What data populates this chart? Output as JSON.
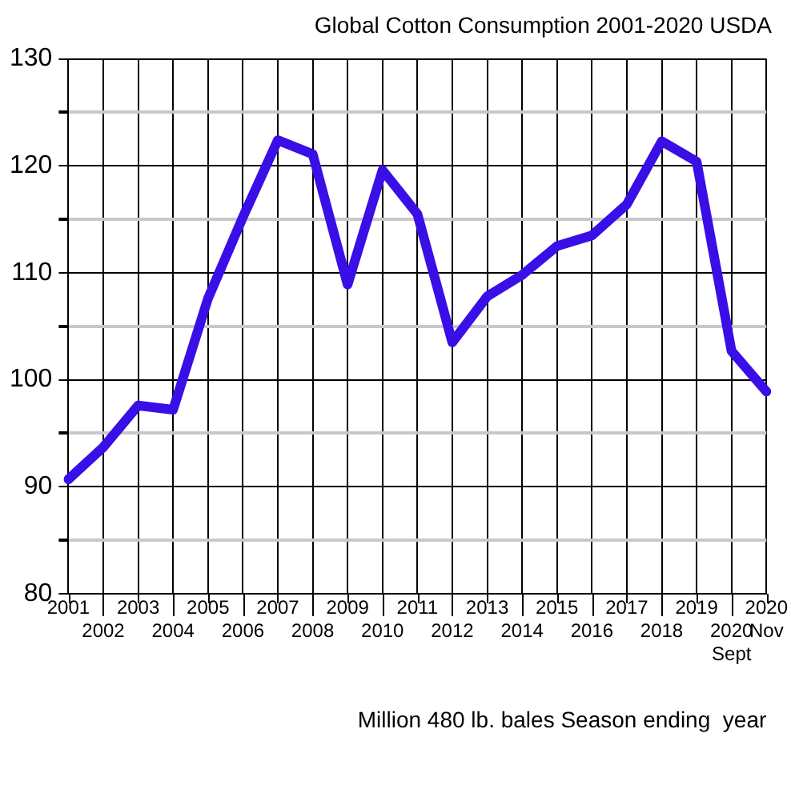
{
  "chart_data": {
    "type": "line",
    "title": "Global Cotton Consumption 2001-2020 USDA",
    "xlabel": "Million 480 lb. bales Season ending  year",
    "categories": [
      "2001",
      "2002",
      "2003",
      "2004",
      "2005",
      "2006",
      "2007",
      "2008",
      "2009",
      "2010",
      "2011",
      "2012",
      "2013",
      "2014",
      "2015",
      "2016",
      "2017",
      "2018",
      "2019",
      "2020 Sept",
      "2020 Nov"
    ],
    "series": [
      {
        "color": "#3a0ee6",
        "values": [
          90.7,
          93.7,
          97.6,
          97.2,
          107.6,
          115.2,
          122.4,
          121.1,
          108.9,
          119.6,
          115.5,
          103.5,
          107.8,
          109.8,
          112.5,
          113.5,
          116.4,
          122.3,
          120.4,
          102.7,
          98.9
        ]
      }
    ],
    "ylim": [
      80,
      130
    ],
    "yticks": [
      80,
      {
        "value": 85,
        "label": null
      },
      90,
      {
        "value": 95,
        "label": null
      },
      100,
      {
        "value": 105,
        "label": null
      },
      110,
      {
        "value": 115,
        "label": null
      },
      120,
      {
        "value": 125,
        "label": null
      },
      130
    ],
    "grid": true,
    "legend": false,
    "marker": "none",
    "line_style": "solid"
  }
}
